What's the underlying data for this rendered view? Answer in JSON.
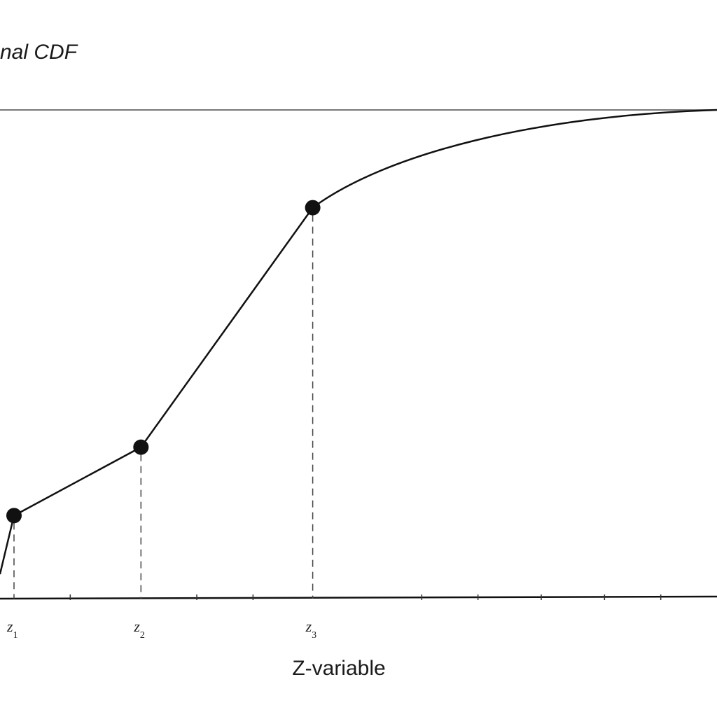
{
  "chart_data": {
    "type": "line",
    "title": "nal CDF",
    "xlabel": "Z-variable",
    "ylabel": "",
    "xlim": [
      0,
      1
    ],
    "ylim": [
      0,
      1
    ],
    "upper_bound": 1.0,
    "grid": false,
    "series": [
      {
        "segments": [
          {
            "from": [
              -0.02,
              0.05
            ],
            "to": [
              0.0,
              0.17
            ],
            "style": "linear"
          },
          {
            "from": [
              0.0,
              0.17
            ],
            "to": [
              0.1806,
              0.31
            ],
            "style": "linear"
          },
          {
            "from": [
              0.1806,
              0.31
            ],
            "to": [
              0.4249,
              0.8
            ],
            "style": "linear"
          },
          {
            "from": [
              0.4249,
              0.8
            ],
            "to": [
              1.0,
              1.0
            ],
            "style": "curve"
          }
        ]
      }
    ],
    "points": [
      {
        "label": "z",
        "sub": "1",
        "x": 0.0,
        "y": 0.17
      },
      {
        "label": "z",
        "sub": "2",
        "x": 0.1806,
        "y": 0.31
      },
      {
        "label": "z",
        "sub": "3",
        "x": 0.4249,
        "y": 0.8
      }
    ],
    "minor_ticks": [
      0.08,
      0.26,
      0.34,
      0.58,
      0.66,
      0.75,
      0.84,
      0.92
    ]
  }
}
